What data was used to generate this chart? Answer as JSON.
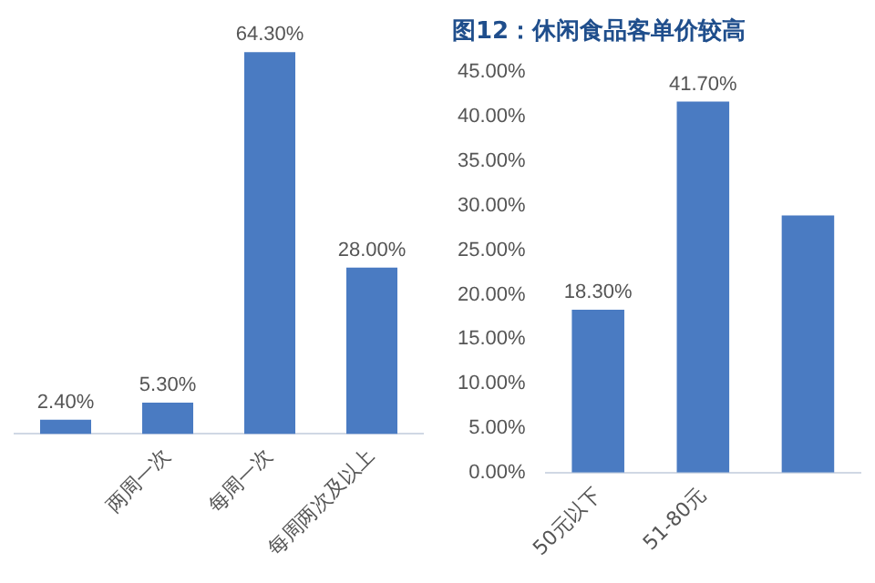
{
  "chart_data": [
    {
      "type": "bar",
      "categories": [
        null,
        "两周一次",
        "每周一次",
        "每周两次及以上"
      ],
      "values": [
        2.4,
        5.3,
        64.3,
        28.0
      ],
      "value_labels": [
        "2.40%",
        "5.30%",
        "64.30%",
        "28.00%"
      ],
      "color": "#4a7bc2",
      "tick_labels": "x",
      "grid": false
    },
    {
      "type": "bar",
      "title": "图12：休闲食品客单价较高",
      "categories": [
        "50元以下",
        "51-80元",
        null
      ],
      "values": [
        18.3,
        41.7,
        28.9
      ],
      "value_labels": [
        "18.30%",
        "41.70%",
        null
      ],
      "color": "#4a7bc2",
      "ylim": [
        0,
        45
      ],
      "yticks": [
        {
          "value": 0,
          "label": "0.00%"
        },
        {
          "value": 5,
          "label": "5.00%"
        },
        {
          "value": 10,
          "label": "10.00%"
        },
        {
          "value": 15,
          "label": "15.00%"
        },
        {
          "value": 20,
          "label": "20.00%"
        },
        {
          "value": 25,
          "label": "25.00%"
        },
        {
          "value": 30,
          "label": "30.00%"
        },
        {
          "value": 35,
          "label": "35.00%"
        },
        {
          "value": 40,
          "label": "40.00%"
        },
        {
          "value": 45,
          "label": "45.00%"
        }
      ],
      "grid": false
    }
  ]
}
